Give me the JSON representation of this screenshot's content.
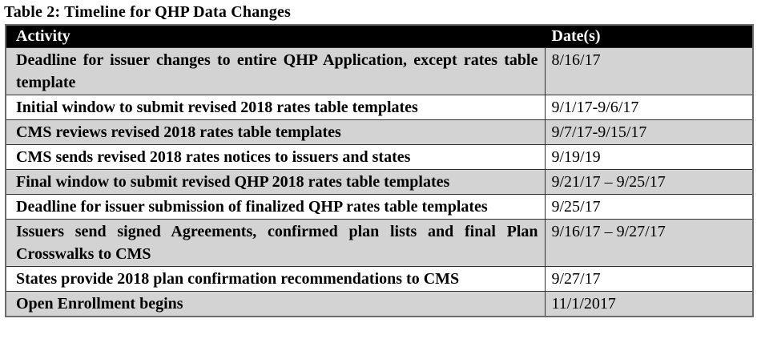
{
  "title": "Table 2: Timeline for QHP Data Changes",
  "table": {
    "columns": [
      {
        "label": "Activity"
      },
      {
        "label": "Date(s)"
      }
    ],
    "rows": [
      {
        "activity": "Deadline for issuer changes to entire QHP Application, except rates table template",
        "date": "8/16/17",
        "shaded": true
      },
      {
        "activity": "Initial window to submit revised 2018 rates table templates",
        "date": "9/1/17-9/6/17",
        "shaded": false
      },
      {
        "activity": "CMS reviews revised 2018 rates table templates",
        "date": "9/7/17-9/15/17",
        "shaded": true
      },
      {
        "activity": "CMS sends revised 2018 rates notices to issuers and states",
        "date": "9/19/19",
        "shaded": false
      },
      {
        "activity": "Final window to submit revised QHP 2018 rates table templates",
        "date": "9/21/17 – 9/25/17",
        "shaded": true
      },
      {
        "activity": "Deadline for issuer submission of finalized QHP rates table templates",
        "date": "9/25/17",
        "shaded": false
      },
      {
        "activity": "Issuers send signed Agreements, confirmed plan lists and final Plan Crosswalks to CMS",
        "date": "9/16/17 – 9/27/17",
        "shaded": true
      },
      {
        "activity": "States provide 2018 plan confirmation recommendations to CMS",
        "date": "9/27/17",
        "shaded": false
      },
      {
        "activity": "Open Enrollment begins",
        "date": "11/1/2017",
        "shaded": true
      }
    ],
    "colors": {
      "header_bg": "#000000",
      "header_text": "#ffffff",
      "shaded_row_bg": "#d3d3d3",
      "row_bg": "#ffffff",
      "border_inner": "#2f2f2f",
      "border_outer": "#6b6b6b"
    }
  }
}
